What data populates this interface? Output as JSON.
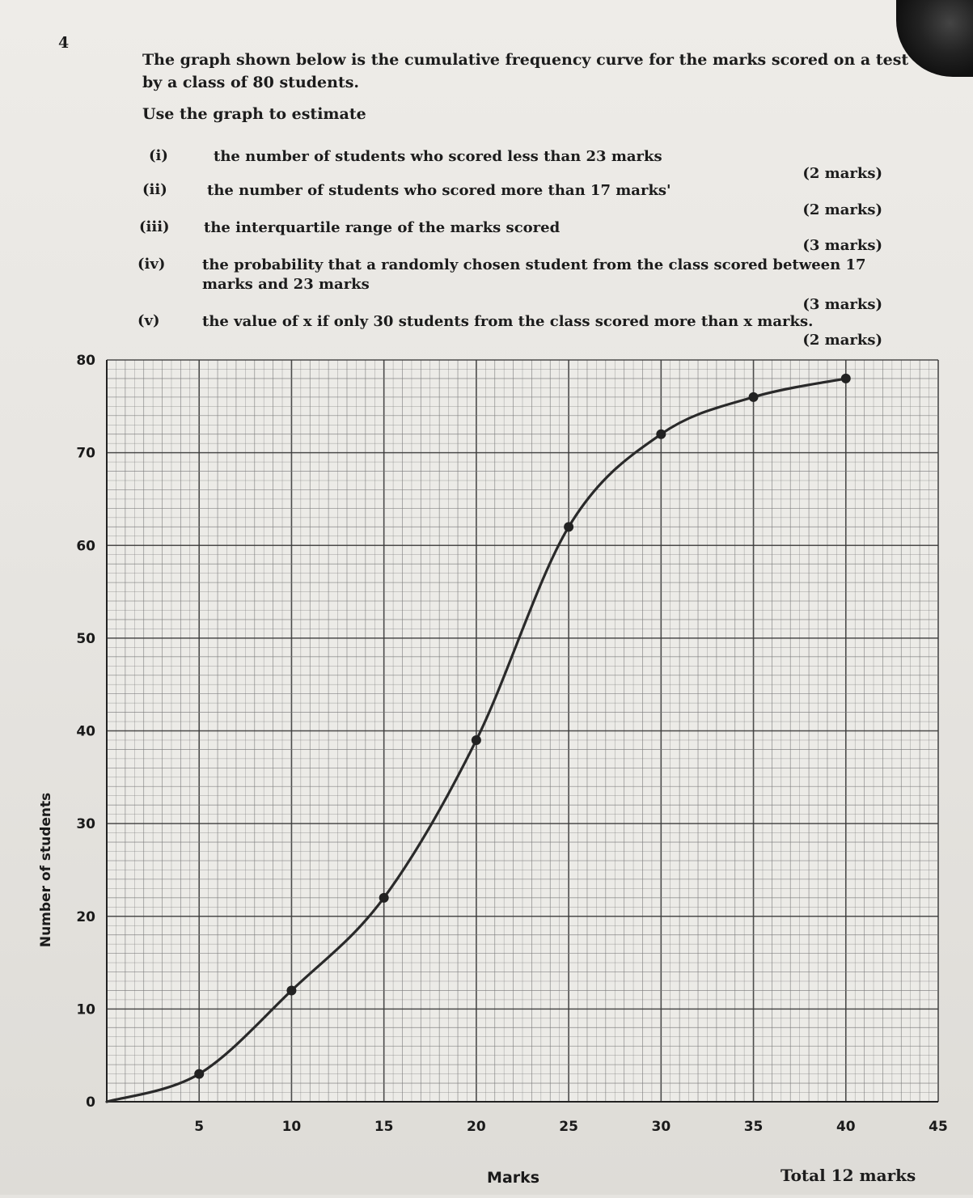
{
  "question": {
    "number": "4",
    "intro": "The graph shown below is the cumulative frequency curve for the marks scored on a test by a class of 80 students.",
    "instruction": "Use the graph to estimate",
    "parts": [
      {
        "roman": "(i)",
        "text": "the number of students who scored less than 23 marks",
        "marks": "(2 marks)"
      },
      {
        "roman": "(ii)",
        "text": "the number of students who scored more than 17 marks'",
        "marks": "(2 marks)"
      },
      {
        "roman": "(iii)",
        "text": "the interquartile range of the marks scored",
        "marks": "(3 marks)"
      },
      {
        "roman": "(iv)",
        "text": "the probability that a randomly chosen student from the class scored between 17 marks and 23 marks",
        "marks": "(3 marks)"
      },
      {
        "roman": "(v)",
        "text": "the value of x if only 30 students from the class scored more than x marks.",
        "marks": "(2 marks)"
      }
    ],
    "total": "Total 12 marks"
  },
  "colors": {
    "curve": "#2a2a2a",
    "grid_major": "#3a3a3a",
    "grid_minor": "#7a7a7a",
    "point": "#222222"
  },
  "chart_data": {
    "type": "line",
    "xlabel": "Marks",
    "ylabel": "Number of students",
    "xlim": [
      0,
      45
    ],
    "ylim": [
      0,
      80
    ],
    "xticks": [
      "5",
      "10",
      "15",
      "20",
      "25",
      "30",
      "35",
      "40",
      "45"
    ],
    "yticks": [
      "0",
      "10",
      "20",
      "30",
      "40",
      "50",
      "60",
      "70",
      "80"
    ],
    "grid": true,
    "series": [
      {
        "x": [
          5,
          10,
          15,
          20,
          25,
          30,
          35,
          40
        ],
        "y": [
          3,
          12,
          22,
          39,
          62,
          72,
          76,
          78
        ]
      }
    ]
  }
}
